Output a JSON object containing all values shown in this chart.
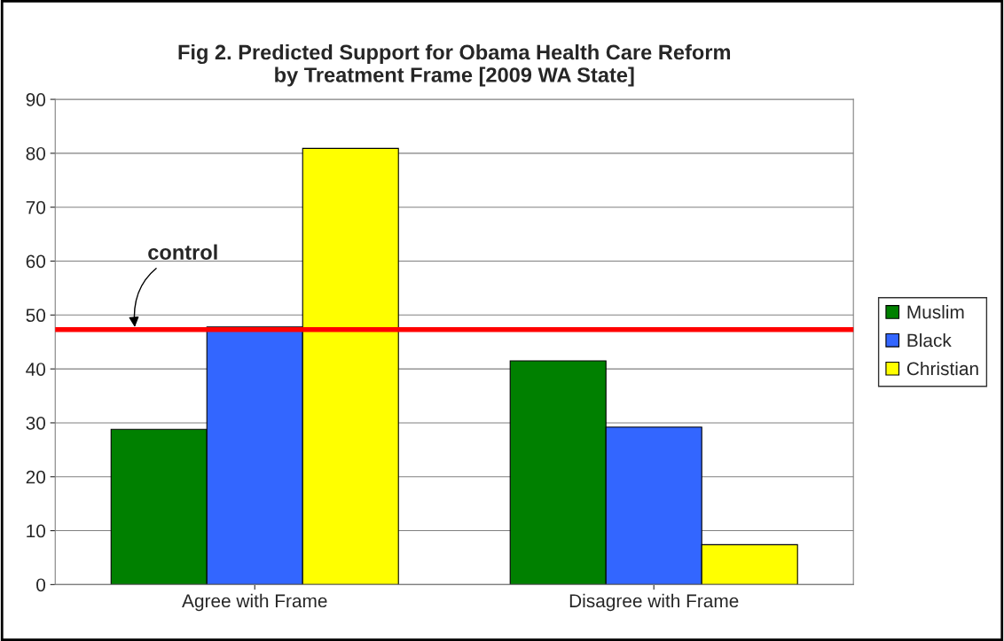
{
  "chart_data": {
    "type": "bar",
    "title": "Fig 2. Predicted Support for Obama Health Care Reform\nby Treatment Frame [2009 WA State]",
    "categories": [
      "Agree with Frame",
      "Disagree with Frame"
    ],
    "series": [
      {
        "name": "Muslim",
        "color": "#008000",
        "values": [
          28.8,
          41.5
        ]
      },
      {
        "name": "Black",
        "color": "#3366ff",
        "values": [
          47.8,
          29.2
        ]
      },
      {
        "name": "Christian",
        "color": "#ffff00",
        "values": [
          80.9,
          7.4
        ]
      }
    ],
    "ylim": [
      0,
      90
    ],
    "yticks": [
      0,
      10,
      20,
      30,
      40,
      50,
      60,
      70,
      80,
      90
    ],
    "grid": "y",
    "legend": "right",
    "ref_lines": [
      {
        "axis": "y",
        "value": 47.3,
        "label": "control",
        "color": "#ff0000"
      }
    ]
  }
}
